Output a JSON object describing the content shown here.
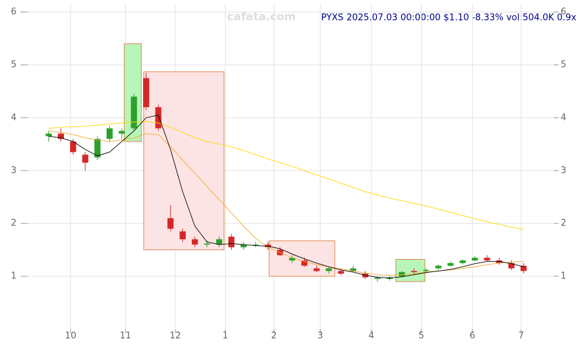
{
  "chart_data": {
    "type": "candlestick",
    "title": "PYXS 2025.07.03 00:00:00 $1.10 -8.33% vol:504.0K 0.9x",
    "watermark": "cafata.com",
    "x": [
      0,
      1,
      2,
      3,
      4,
      5,
      6,
      7,
      8,
      9,
      10,
      11,
      12,
      13,
      14,
      15,
      16,
      17,
      18,
      19,
      20,
      21,
      22,
      23,
      24,
      25,
      26,
      27,
      28,
      29,
      30,
      31,
      32,
      33,
      34,
      35,
      36,
      37,
      38,
      39
    ],
    "open": [
      3.65,
      3.7,
      3.55,
      3.3,
      3.25,
      3.6,
      3.7,
      3.8,
      4.75,
      4.2,
      2.1,
      1.85,
      1.7,
      1.6,
      1.6,
      1.75,
      1.55,
      1.6,
      1.6,
      1.5,
      1.3,
      1.3,
      1.15,
      1.1,
      1.1,
      1.1,
      1.05,
      0.95,
      0.95,
      1.0,
      1.1,
      1.1,
      1.15,
      1.2,
      1.25,
      1.3,
      1.35,
      1.3,
      1.25,
      1.2
    ],
    "high": [
      3.75,
      3.8,
      3.6,
      3.35,
      3.65,
      3.85,
      3.8,
      4.45,
      4.85,
      4.25,
      2.35,
      1.9,
      1.75,
      1.68,
      1.75,
      1.8,
      1.65,
      1.65,
      1.65,
      1.55,
      1.4,
      1.35,
      1.2,
      1.18,
      1.15,
      1.2,
      1.1,
      1.0,
      1.0,
      1.1,
      1.15,
      1.15,
      1.22,
      1.28,
      1.32,
      1.38,
      1.4,
      1.35,
      1.3,
      1.25
    ],
    "low": [
      3.55,
      3.55,
      3.3,
      3.0,
      3.2,
      3.55,
      3.6,
      3.75,
      4.15,
      3.75,
      1.85,
      1.65,
      1.55,
      1.55,
      1.55,
      1.5,
      1.5,
      1.55,
      1.5,
      1.38,
      1.25,
      1.18,
      1.08,
      1.05,
      1.02,
      1.08,
      0.95,
      0.9,
      0.92,
      0.98,
      1.05,
      1.06,
      1.12,
      1.18,
      1.22,
      1.28,
      1.28,
      1.22,
      1.12,
      1.05
    ],
    "close": [
      3.7,
      3.6,
      3.35,
      3.15,
      3.6,
      3.8,
      3.75,
      4.4,
      4.2,
      3.8,
      1.9,
      1.7,
      1.6,
      1.62,
      1.7,
      1.55,
      1.6,
      1.6,
      1.55,
      1.4,
      1.35,
      1.2,
      1.1,
      1.15,
      1.05,
      1.15,
      0.98,
      0.97,
      0.98,
      1.08,
      1.08,
      1.12,
      1.2,
      1.25,
      1.3,
      1.35,
      1.3,
      1.25,
      1.15,
      1.1
    ],
    "up_color": "#2ca02c",
    "down_color": "#d62728",
    "series": [
      {
        "color": "#ffd700",
        "values": [
          3.8,
          3.82,
          3.83,
          3.84,
          3.86,
          3.88,
          3.9,
          3.92,
          3.93,
          3.9,
          3.82,
          3.72,
          3.62,
          3.55,
          3.5,
          3.45,
          3.38,
          3.3,
          3.22,
          3.15,
          3.08,
          3.0,
          2.92,
          2.84,
          2.76,
          2.68,
          2.6,
          2.54,
          2.48,
          2.43,
          2.38,
          2.33,
          2.27,
          2.21,
          2.15,
          2.09,
          2.03,
          1.98,
          1.93,
          1.89
        ]
      },
      {
        "color": "#f0a830",
        "values": [
          3.75,
          3.72,
          3.68,
          3.62,
          3.58,
          3.55,
          3.58,
          3.62,
          3.7,
          3.68,
          3.45,
          3.2,
          2.95,
          2.7,
          2.45,
          2.2,
          1.95,
          1.72,
          1.55,
          1.45,
          1.35,
          1.28,
          1.22,
          1.18,
          1.14,
          1.1,
          1.06,
          1.03,
          1.02,
          1.03,
          1.05,
          1.08,
          1.1,
          1.12,
          1.15,
          1.18,
          1.22,
          1.25,
          1.27,
          1.28
        ]
      },
      {
        "color": "#000000",
        "values": [
          3.65,
          3.62,
          3.55,
          3.4,
          3.28,
          3.35,
          3.55,
          3.75,
          4.0,
          4.05,
          3.4,
          2.6,
          1.95,
          1.65,
          1.6,
          1.62,
          1.6,
          1.58,
          1.57,
          1.52,
          1.42,
          1.33,
          1.25,
          1.18,
          1.12,
          1.08,
          1.02,
          0.98,
          0.97,
          0.99,
          1.03,
          1.07,
          1.1,
          1.13,
          1.18,
          1.24,
          1.28,
          1.28,
          1.24,
          1.18
        ]
      }
    ],
    "zones": [
      {
        "x": [
          6.2,
          7.6
        ],
        "y": [
          3.55,
          5.4
        ],
        "color": "#b8f5b8"
      },
      {
        "x": [
          7.8,
          14.4
        ],
        "y": [
          1.5,
          4.87
        ],
        "color": "#fde4e4"
      },
      {
        "x": [
          18.1,
          23.5
        ],
        "y": [
          1.0,
          1.67
        ],
        "color": "#fde4e4"
      },
      {
        "x": [
          28.5,
          30.9
        ],
        "y": [
          0.9,
          1.32
        ],
        "color": "#b8f5b8"
      }
    ],
    "xlim": [
      -0.5,
      39.5
    ],
    "xticks": [
      {
        "value": 1.8,
        "label": "10"
      },
      {
        "value": 6.3,
        "label": "11"
      },
      {
        "value": 10.4,
        "label": "12"
      },
      {
        "value": 14.5,
        "label": "1"
      },
      {
        "value": 18.5,
        "label": "2"
      },
      {
        "value": 22.3,
        "label": "3"
      },
      {
        "value": 26.5,
        "label": "4"
      },
      {
        "value": 30.6,
        "label": "5"
      },
      {
        "value": 34.8,
        "label": "6"
      },
      {
        "value": 38.8,
        "label": "7"
      }
    ],
    "ylim": [
      0,
      6.15
    ],
    "yticks": [
      1,
      2,
      3,
      4,
      5,
      6
    ],
    "grid": true
  }
}
